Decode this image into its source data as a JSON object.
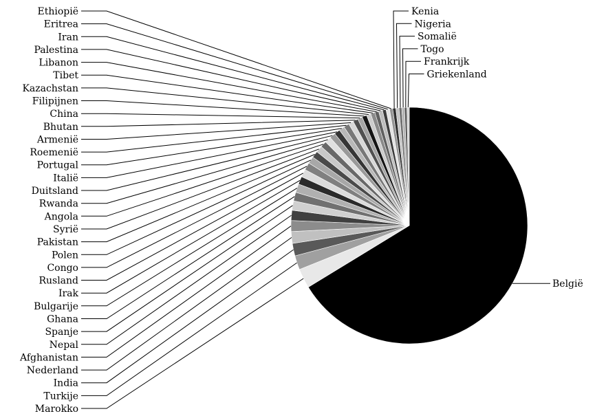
{
  "chart_data": {
    "type": "pie",
    "title": "",
    "slices": [
      {
        "label": "België",
        "value": 62.0,
        "color": "#000000"
      },
      {
        "label": "Marokko",
        "value": 2.5,
        "color": "#e8e8e8"
      },
      {
        "label": "Turkije",
        "value": 1.8,
        "color": "#a0a0a0"
      },
      {
        "label": "India",
        "value": 1.6,
        "color": "#595959"
      },
      {
        "label": "Nederland",
        "value": 1.5,
        "color": "#c0c0c0"
      },
      {
        "label": "Afghanistan",
        "value": 1.4,
        "color": "#8c8c8c"
      },
      {
        "label": "Nepal",
        "value": 1.3,
        "color": "#404040"
      },
      {
        "label": "Spanje",
        "value": 1.2,
        "color": "#d0d0d0"
      },
      {
        "label": "Ghana",
        "value": 1.1,
        "color": "#707070"
      },
      {
        "label": "Bulgarije",
        "value": 1.1,
        "color": "#b0b0b0"
      },
      {
        "label": "Irak",
        "value": 1.0,
        "color": "#2a2a2a"
      },
      {
        "label": "Rusland",
        "value": 1.0,
        "color": "#dcdcdc"
      },
      {
        "label": "Congo",
        "value": 0.95,
        "color": "#808080"
      },
      {
        "label": "Polen",
        "value": 0.9,
        "color": "#a8a8a8"
      },
      {
        "label": "Pakistan",
        "value": 0.85,
        "color": "#4a4a4a"
      },
      {
        "label": "Syrië",
        "value": 0.85,
        "color": "#c8c8c8"
      },
      {
        "label": "Angola",
        "value": 0.8,
        "color": "#686868"
      },
      {
        "label": "Rwanda",
        "value": 0.8,
        "color": "#e0e0e0"
      },
      {
        "label": "Duitsland",
        "value": 0.75,
        "color": "#999999"
      },
      {
        "label": "Italië",
        "value": 0.75,
        "color": "#353535"
      },
      {
        "label": "Portugal",
        "value": 0.7,
        "color": "#b8b8b8"
      },
      {
        "label": "Roemenië",
        "value": 0.7,
        "color": "#787878"
      },
      {
        "label": "Armenië",
        "value": 0.65,
        "color": "#d8d8d8"
      },
      {
        "label": "Bhutan",
        "value": 0.65,
        "color": "#505050"
      },
      {
        "label": "China",
        "value": 0.6,
        "color": "#a4a4a4"
      },
      {
        "label": "Filipijnen",
        "value": 0.6,
        "color": "#151515"
      },
      {
        "label": "Kazachstan",
        "value": 0.55,
        "color": "#cccccc"
      },
      {
        "label": "Tibet",
        "value": 0.55,
        "color": "#8a8a8a"
      },
      {
        "label": "Libanon",
        "value": 0.5,
        "color": "#606060"
      },
      {
        "label": "Palestina",
        "value": 0.5,
        "color": "#bdbdbd"
      },
      {
        "label": "Iran",
        "value": 0.45,
        "color": "#3c3c3c"
      },
      {
        "label": "Eritrea",
        "value": 0.45,
        "color": "#e4e4e4"
      },
      {
        "label": "Ethiopië",
        "value": 0.4,
        "color": "#939393"
      },
      {
        "label": "Kenia",
        "value": 0.4,
        "color": "#2f2f2f"
      },
      {
        "label": "Nigeria",
        "value": 0.4,
        "color": "#c4c4c4"
      },
      {
        "label": "Somalië",
        "value": 0.35,
        "color": "#707070"
      },
      {
        "label": "Togo",
        "value": 0.35,
        "color": "#b4b4b4"
      },
      {
        "label": "Frankrijk",
        "value": 0.3,
        "color": "#555555"
      },
      {
        "label": "Griekenland",
        "value": 0.3,
        "color": "#d4d4d4"
      }
    ]
  }
}
